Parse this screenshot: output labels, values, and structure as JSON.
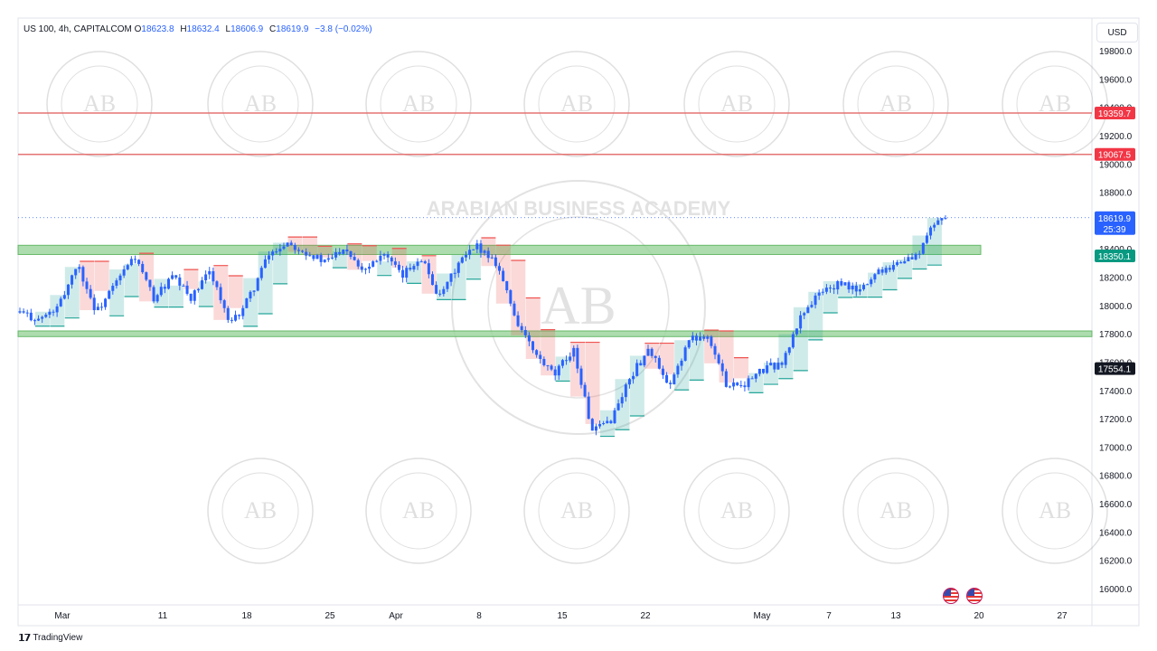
{
  "header": {
    "symbol_label": "US 100, 4h, CAPITALCOM",
    "open_key": "O",
    "open": "18623.8",
    "high_key": "H",
    "high": "18632.4",
    "low_key": "L",
    "low": "18606.9",
    "close_key": "C",
    "close": "18619.9",
    "change": "−3.8 (−0.02%)"
  },
  "currency_button": "USD",
  "footer": {
    "logo": "𝟭𝟳",
    "brand": "TradingView"
  },
  "watermark": {
    "brand_text": "ARABIAN BUSINESS ACADEMY",
    "monogram": "AB"
  },
  "colors": {
    "resistance_line": "#e57373",
    "resistance_label_bg": "#f23645",
    "support_zone": "#9fd7a0",
    "price_label_bg": "#2962ff",
    "level_green_bg": "#089981",
    "candle": "#2962ff",
    "cloud_bull": "#26a69a",
    "cloud_bear": "#ef5350"
  },
  "chart_data": {
    "type": "candlestick",
    "y_axis": {
      "ticks": [
        "19800.0",
        "19600.0",
        "19400.0",
        "19200.0",
        "19000.0",
        "18800.0",
        "18600.0",
        "18400.0",
        "18200.0",
        "18000.0",
        "17800.0",
        "17600.0",
        "17400.0",
        "17200.0",
        "17000.0",
        "16800.0",
        "16600.0",
        "16400.0",
        "16200.0",
        "16000.0"
      ],
      "range": [
        15900,
        19900
      ]
    },
    "x_axis": {
      "ticks": [
        "Mar",
        "11",
        "18",
        "25",
        "Apr",
        "8",
        "15",
        "22",
        "May",
        "7",
        "13",
        "20",
        "27"
      ]
    },
    "price_labels": {
      "current": "18619.9",
      "countdown": "25:39",
      "level_green": "18350.1",
      "level_black": "17554.1",
      "resistance_1": "19359.7",
      "resistance_2": "19067.5"
    },
    "resistance_levels": [
      19359.7,
      19067.5
    ],
    "support_zones": [
      [
        18360,
        18425
      ],
      [
        17780,
        17820
      ]
    ],
    "current_price": 18619.9,
    "price_path": [
      [
        0,
        17950
      ],
      [
        2,
        17900
      ],
      [
        4,
        17980
      ],
      [
        6,
        18300
      ],
      [
        8,
        17950
      ],
      [
        10,
        18150
      ],
      [
        12,
        18350
      ],
      [
        14,
        18050
      ],
      [
        16,
        18200
      ],
      [
        18,
        18050
      ],
      [
        20,
        18250
      ],
      [
        22,
        17850
      ],
      [
        24,
        18050
      ],
      [
        26,
        18350
      ],
      [
        28,
        18450
      ],
      [
        30,
        18380
      ],
      [
        32,
        18300
      ],
      [
        34,
        18420
      ],
      [
        36,
        18250
      ],
      [
        38,
        18380
      ],
      [
        40,
        18200
      ],
      [
        42,
        18350
      ],
      [
        44,
        18050
      ],
      [
        46,
        18300
      ],
      [
        48,
        18420
      ],
      [
        50,
        18300
      ],
      [
        52,
        17900
      ],
      [
        54,
        17650
      ],
      [
        56,
        17500
      ],
      [
        58,
        17700
      ],
      [
        60,
        17100
      ],
      [
        62,
        17200
      ],
      [
        64,
        17500
      ],
      [
        66,
        17700
      ],
      [
        68,
        17400
      ],
      [
        70,
        17750
      ],
      [
        72,
        17800
      ],
      [
        74,
        17450
      ],
      [
        76,
        17450
      ],
      [
        78,
        17550
      ],
      [
        80,
        17600
      ],
      [
        82,
        17950
      ],
      [
        84,
        18100
      ],
      [
        86,
        18150
      ],
      [
        88,
        18100
      ],
      [
        90,
        18250
      ],
      [
        92,
        18300
      ],
      [
        94,
        18350
      ],
      [
        96,
        18600
      ],
      [
        97,
        18620
      ]
    ]
  }
}
